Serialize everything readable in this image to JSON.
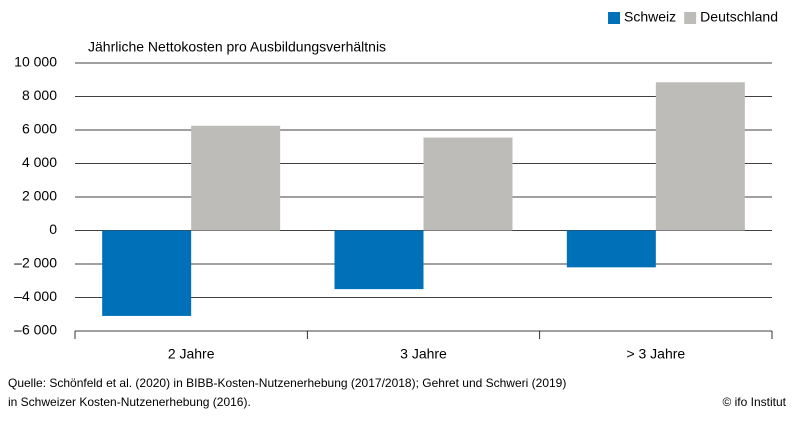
{
  "chart_data": {
    "type": "bar",
    "subtitle": "Jährliche Nettokosten pro Ausbildungsverhältnis",
    "categories": [
      "2 Jahre",
      "3 Jahre",
      "> 3 Jahre"
    ],
    "series": [
      {
        "name": "Schweiz",
        "color": "#0070b8",
        "values": [
          -5100,
          -3500,
          -2200
        ]
      },
      {
        "name": "Deutschland",
        "color": "#bdbcb9",
        "values": [
          6250,
          5550,
          8850
        ]
      }
    ],
    "ylim": [
      -6000,
      10000
    ],
    "yticks": [
      {
        "value": 10000,
        "label": "10 000"
      },
      {
        "value": 8000,
        "label": "8 000"
      },
      {
        "value": 6000,
        "label": "6 000"
      },
      {
        "value": 4000,
        "label": "4 000"
      },
      {
        "value": 2000,
        "label": "2 000"
      },
      0,
      {
        "value": -2000,
        "label": "–2 000"
      },
      {
        "value": -4000,
        "label": "–4 000"
      },
      {
        "value": -6000,
        "label": "–6 000"
      }
    ],
    "grid": true,
    "legend": "top-right",
    "source": [
      "Quelle: Schönfeld et al. (2020) in BIBB-Kosten-Nutzenerhebung (2017/2018); Gehret und Schweri (2019)",
      "in Schweizer Kosten-Nutzenerhebung (2016)."
    ],
    "credit": "© ifo Institut"
  }
}
